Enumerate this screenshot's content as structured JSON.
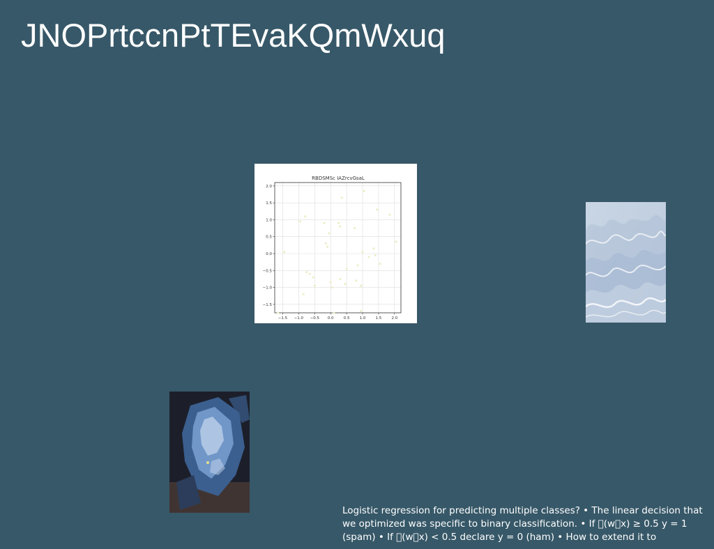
{
  "slide": {
    "title": "JNOPrtccnPtTEvaKQmWxuq",
    "body_text": "Logistic regression for predicting multiple classes? • The linear decision that we optimized was specific to binary classification. • If \u0000(w\u0000x) ≥ 0.5 y = 1 (spam) • If \u0000(w\u0000x) < 0.5 declare y = 0 (ham) • How to extend it to",
    "background_color": "#375868"
  },
  "chart_data": {
    "type": "scatter",
    "title": "RBDSMSc IAZrcvGsaL",
    "xlim": [
      -1.75,
      2.2
    ],
    "ylim": [
      -1.75,
      2.1
    ],
    "x_ticks": [
      "−1.5",
      "−1.0",
      "−0.5",
      "0.0",
      "0.5",
      "1.0",
      "1.5",
      "2.0"
    ],
    "y_ticks": [
      "2.0",
      "1.5",
      "1.0",
      "0.5",
      "0.0",
      "−0.5",
      "−1.0",
      "−1.5"
    ],
    "x_tick_values": [
      -1.5,
      -1.0,
      -0.5,
      0.0,
      0.5,
      1.0,
      1.5,
      2.0
    ],
    "y_tick_values": [
      2.0,
      1.5,
      1.0,
      0.5,
      0.0,
      -0.5,
      -1.0,
      -1.5
    ],
    "grid": true,
    "point_color": "#eeeecc",
    "x": [
      -1.65,
      -1.45,
      -0.95,
      -0.85,
      -0.8,
      -0.75,
      -0.65,
      -0.55,
      -0.5,
      -0.2,
      -0.15,
      -0.1,
      -0.05,
      0.0,
      0.05,
      0.1,
      0.25,
      0.3,
      0.35,
      0.3,
      0.45,
      0.5,
      0.75,
      0.8,
      0.85,
      0.95,
      1.0,
      1.05,
      1.2,
      1.35,
      1.4,
      1.45,
      1.55,
      1.85,
      2.05,
      0.95
    ],
    "y": [
      -1.75,
      0.05,
      0.95,
      -1.2,
      1.1,
      -0.55,
      -0.6,
      -0.7,
      -0.95,
      0.9,
      0.3,
      0.2,
      0.6,
      -0.85,
      -1.0,
      -1.75,
      0.9,
      -0.75,
      1.65,
      0.8,
      -0.9,
      -0.45,
      0.75,
      -0.8,
      -0.35,
      -1.7,
      0.05,
      1.85,
      -0.1,
      0.15,
      -0.05,
      1.3,
      -0.3,
      1.15,
      0.35,
      -0.95
    ]
  },
  "images": {
    "waves": {
      "colors": [
        "#c9d6e4",
        "#aebfd6",
        "#e8edf3",
        "#9fb4d0"
      ]
    },
    "rock": {
      "colors": [
        "#1c1f2a",
        "#3b5f8f",
        "#7fa4d6",
        "#c7d8ee",
        "#4a3a35"
      ]
    }
  }
}
